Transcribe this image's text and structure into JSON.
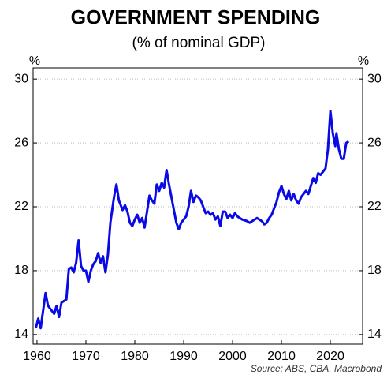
{
  "chart_data": {
    "type": "line",
    "title": "GOVERNMENT SPENDING",
    "subtitle": "(% of nominal GDP)",
    "y_unit_left": "%",
    "y_unit_right": "%",
    "source": "Source: ABS, CBA, Macrobond",
    "xlim": [
      1959.2,
      2026.6
    ],
    "xticks": [
      1960,
      1970,
      1980,
      1990,
      2000,
      2010,
      2020
    ],
    "ylim": [
      13.4,
      30.7
    ],
    "yticks": [
      14,
      18,
      22,
      26,
      30
    ],
    "grid": true,
    "series": [
      {
        "name": "Government spending",
        "color": "#0a0ae6",
        "x": [
          1959.75,
          1960.25,
          1960.75,
          1961.25,
          1961.75,
          1962.25,
          1962.75,
          1963.5,
          1964,
          1964.5,
          1965,
          1966,
          1966.5,
          1967,
          1967.5,
          1968,
          1968.5,
          1969,
          1969.5,
          1970,
          1970.5,
          1971,
          1971.5,
          1972,
          1972.5,
          1973,
          1973.5,
          1974,
          1974.5,
          1975,
          1975.75,
          1976.25,
          1976.75,
          1977.5,
          1978,
          1978.5,
          1979,
          1979.5,
          1980,
          1980.5,
          1981,
          1981.5,
          1982,
          1982.5,
          1983,
          1983.5,
          1984,
          1984.5,
          1985,
          1985.5,
          1986,
          1986.5,
          1987,
          1987.5,
          1988,
          1988.5,
          1989,
          1989.5,
          1990,
          1990.5,
          1991,
          1991.5,
          1992,
          1992.5,
          1993,
          1993.5,
          1994,
          1994.5,
          1995,
          1995.5,
          1996,
          1996.5,
          1997,
          1997.5,
          1998,
          1998.5,
          1999,
          1999.5,
          2000,
          2000.5,
          2001,
          2002,
          2003,
          2003.5,
          2004,
          2005,
          2006,
          2006.5,
          2007,
          2007.5,
          2008,
          2009,
          2009.5,
          2010,
          2010.5,
          2011,
          2011.5,
          2012,
          2012.5,
          2013,
          2013.5,
          2014,
          2015,
          2015.5,
          2016,
          2016.5,
          2017,
          2017.5,
          2018,
          2018.5,
          2019,
          2019.5,
          2020,
          2020.5,
          2021,
          2021.25,
          2021.75,
          2022.25,
          2022.75,
          2023.25,
          2023.75
        ],
        "values": [
          14.4,
          15.0,
          14.4,
          15.5,
          16.6,
          15.8,
          15.6,
          15.3,
          15.8,
          15.1,
          16.0,
          16.2,
          18.1,
          18.2,
          17.9,
          18.5,
          19.9,
          18.3,
          18.0,
          18.0,
          17.3,
          18.0,
          18.4,
          18.6,
          19.1,
          18.5,
          18.9,
          17.9,
          19.0,
          21.0,
          22.6,
          23.4,
          22.4,
          21.8,
          22.1,
          21.7,
          21.0,
          20.8,
          21.2,
          21.5,
          21.0,
          21.3,
          20.7,
          21.7,
          22.7,
          22.4,
          22.2,
          23.4,
          23.0,
          23.5,
          23.2,
          24.3,
          23.4,
          22.6,
          21.8,
          21.0,
          20.6,
          21.0,
          21.2,
          21.4,
          22.0,
          23.0,
          22.3,
          22.7,
          22.6,
          22.4,
          22.0,
          21.6,
          21.7,
          21.5,
          21.6,
          21.2,
          21.4,
          20.8,
          21.7,
          21.7,
          21.3,
          21.5,
          21.3,
          21.6,
          21.4,
          21.2,
          21.1,
          21.0,
          21.1,
          21.3,
          21.1,
          20.9,
          21.0,
          21.3,
          21.5,
          22.3,
          22.9,
          23.3,
          22.8,
          22.5,
          23.0,
          22.4,
          22.8,
          22.4,
          22.2,
          22.6,
          23.0,
          22.8,
          23.3,
          23.8,
          23.5,
          24.1,
          24.0,
          24.2,
          24.4,
          25.6,
          28.0,
          26.6,
          25.8,
          26.6,
          25.6,
          25.0,
          25.0,
          26.0,
          26.1
        ]
      }
    ]
  }
}
